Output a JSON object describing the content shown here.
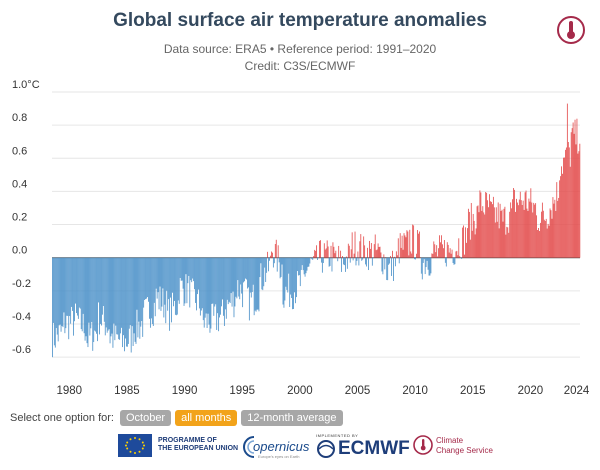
{
  "header": {
    "title": "Global surface air temperature anomalies",
    "subtitle_line1": "Data source: ERA5 • Reference period: 1991–2020",
    "subtitle_line2": "Credit: C3S/ECMWF"
  },
  "controls": {
    "prompt": "Select one option for:",
    "options": [
      {
        "label": "October",
        "active": false
      },
      {
        "label": "all months",
        "active": true
      },
      {
        "label": "12-month average",
        "active": false
      }
    ]
  },
  "logos": {
    "eu_line1": "PROGRAMME OF",
    "eu_line2": "THE EUROPEAN UNION",
    "copernicus": "opernicus",
    "copernicus_sub": "Europe's eyes on Earth",
    "ecmwf_impl": "IMPLEMENTED BY",
    "ecmwf": "ECMWF",
    "c3s_line1": "Climate",
    "c3s_line2": "Change Service"
  },
  "colors": {
    "positive": "#e34a4a",
    "negative": "#4a90c8",
    "active_option": "#f2a31a",
    "inactive_option": "#a7a7a7"
  },
  "chart_data": {
    "type": "bar",
    "title": "Global surface air temperature anomalies",
    "ylabel_unit": "°C",
    "ylim": [
      -0.72,
      1.0
    ],
    "y_ticks": [
      {
        "value": 1.0,
        "label": "1.0°C"
      },
      {
        "value": 0.8,
        "label": "0.8"
      },
      {
        "value": 0.6,
        "label": "0.6"
      },
      {
        "value": 0.4,
        "label": "0.4"
      },
      {
        "value": 0.2,
        "label": "0.2"
      },
      {
        "value": 0.0,
        "label": "0.0"
      },
      {
        "value": -0.2,
        "label": "-0.2"
      },
      {
        "value": -0.4,
        "label": "-0.4"
      },
      {
        "value": -0.6,
        "label": "-0.6"
      }
    ],
    "x_ticks": [
      {
        "value": 1980,
        "label": "1980"
      },
      {
        "value": 1985,
        "label": "1985"
      },
      {
        "value": 1990,
        "label": "1990"
      },
      {
        "value": 1995,
        "label": "1995"
      },
      {
        "value": 2000,
        "label": "2000"
      },
      {
        "value": 2005,
        "label": "2005"
      },
      {
        "value": 2010,
        "label": "2010"
      },
      {
        "value": 2015,
        "label": "2015"
      },
      {
        "value": 2020,
        "label": "2020"
      },
      {
        "value": 2024,
        "label": "2024"
      }
    ],
    "x_range": [
      1979,
      2024.8
    ],
    "grid": true,
    "frequency": "monthly",
    "yearly_mean_anomaly": [
      {
        "year": 1979,
        "value": -0.49
      },
      {
        "year": 1980,
        "value": -0.4
      },
      {
        "year": 1981,
        "value": -0.37
      },
      {
        "year": 1982,
        "value": -0.5
      },
      {
        "year": 1983,
        "value": -0.36
      },
      {
        "year": 1984,
        "value": -0.48
      },
      {
        "year": 1985,
        "value": -0.52
      },
      {
        "year": 1986,
        "value": -0.44
      },
      {
        "year": 1987,
        "value": -0.34
      },
      {
        "year": 1988,
        "value": -0.24
      },
      {
        "year": 1989,
        "value": -0.35
      },
      {
        "year": 1990,
        "value": -0.18
      },
      {
        "year": 1991,
        "value": -0.22
      },
      {
        "year": 1992,
        "value": -0.39
      },
      {
        "year": 1993,
        "value": -0.38
      },
      {
        "year": 1994,
        "value": -0.3
      },
      {
        "year": 1995,
        "value": -0.18
      },
      {
        "year": 1996,
        "value": -0.28
      },
      {
        "year": 1997,
        "value": -0.14
      },
      {
        "year": 1998,
        "value": 0.06
      },
      {
        "year": 1999,
        "value": -0.21
      },
      {
        "year": 2000,
        "value": -0.19
      },
      {
        "year": 2001,
        "value": -0.06
      },
      {
        "year": 2002,
        "value": 0.0
      },
      {
        "year": 2003,
        "value": 0.01
      },
      {
        "year": 2004,
        "value": -0.04
      },
      {
        "year": 2005,
        "value": 0.07
      },
      {
        "year": 2006,
        "value": 0.03
      },
      {
        "year": 2007,
        "value": 0.04
      },
      {
        "year": 2008,
        "value": -0.08
      },
      {
        "year": 2009,
        "value": 0.05
      },
      {
        "year": 2010,
        "value": 0.12
      },
      {
        "year": 2011,
        "value": -0.03
      },
      {
        "year": 2012,
        "value": 0.03
      },
      {
        "year": 2013,
        "value": 0.04
      },
      {
        "year": 2014,
        "value": 0.07
      },
      {
        "year": 2015,
        "value": 0.2
      },
      {
        "year": 2016,
        "value": 0.33
      },
      {
        "year": 2017,
        "value": 0.27
      },
      {
        "year": 2018,
        "value": 0.22
      },
      {
        "year": 2019,
        "value": 0.34
      },
      {
        "year": 2020,
        "value": 0.35
      },
      {
        "year": 2021,
        "value": 0.24
      },
      {
        "year": 2022,
        "value": 0.28
      },
      {
        "year": 2023,
        "value": 0.55
      },
      {
        "year": 2024,
        "value": 0.73
      }
    ],
    "peak": {
      "year": 2023,
      "month": 9,
      "value": 0.93
    }
  }
}
